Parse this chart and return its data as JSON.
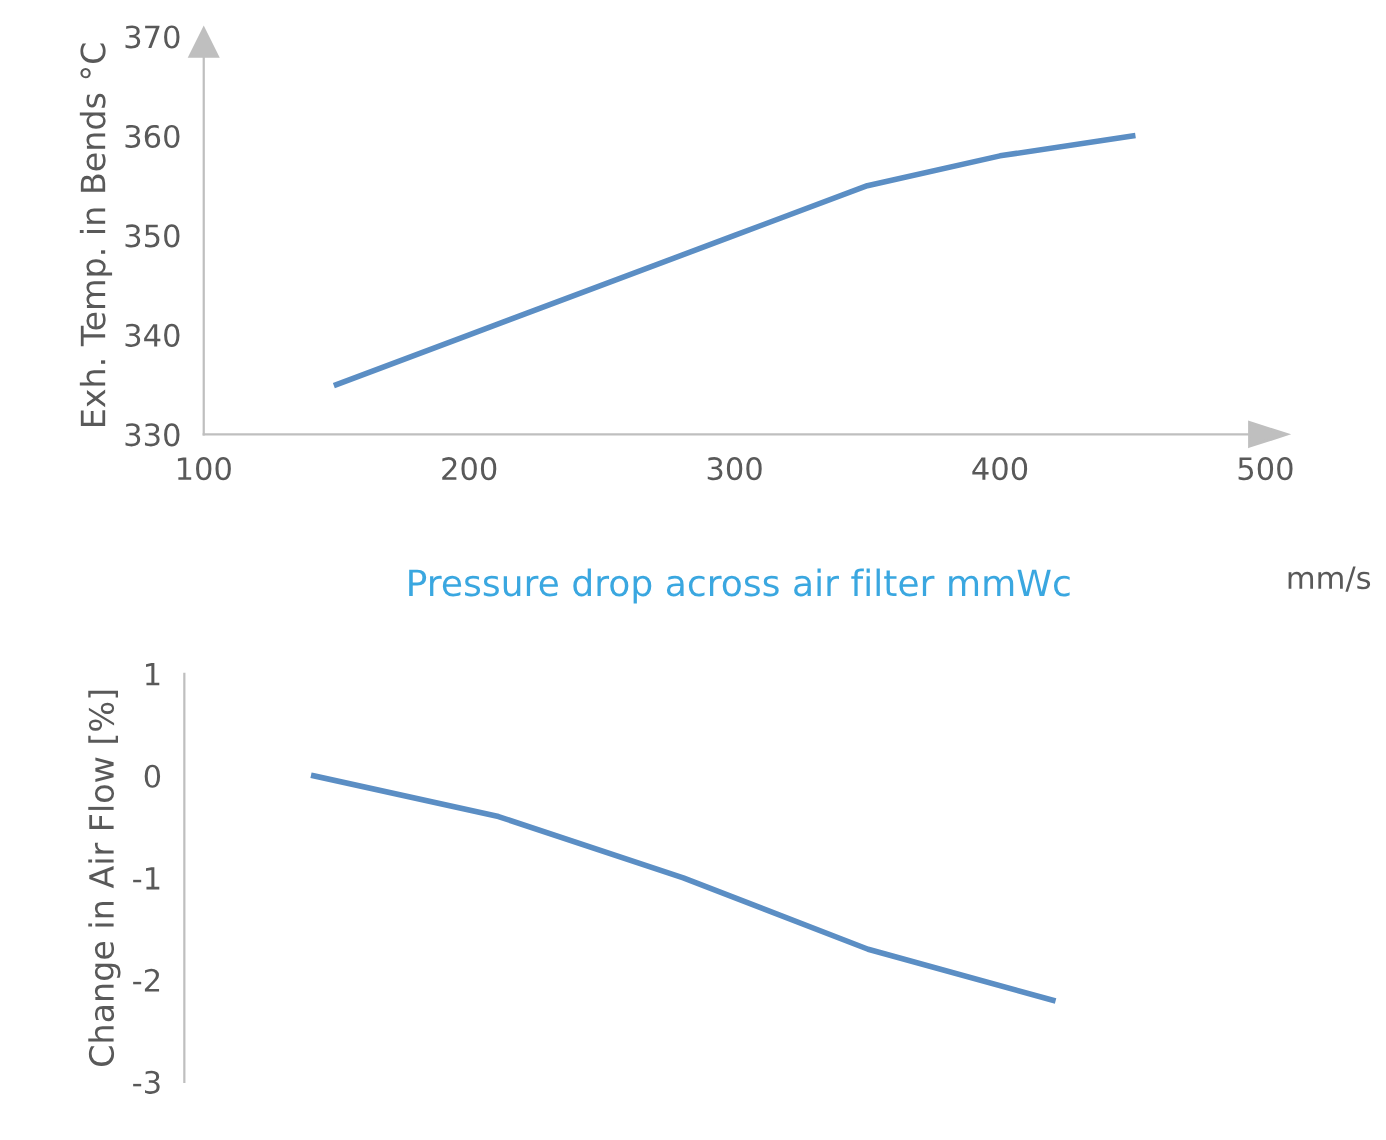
{
  "chart_data": [
    {
      "type": "line",
      "xlabel": "mm/s",
      "ylabel": "Exh. Temp. in Bends °C",
      "x": [
        150,
        200,
        250,
        300,
        350,
        400,
        450
      ],
      "series": [
        {
          "color": "#5b8ec4",
          "values": [
            335,
            340,
            345,
            350,
            355,
            358,
            360
          ]
        }
      ],
      "xlim": [
        100,
        500
      ],
      "xticks": [
        100,
        200,
        300,
        400,
        500
      ],
      "ylim": [
        330,
        370
      ],
      "yticks": [
        330,
        340,
        350,
        360,
        370
      ],
      "grid": false,
      "legend": false,
      "marker": "none",
      "line_style": "solid"
    },
    {
      "type": "line",
      "title": "Pressure drop across air filter mmWc",
      "ylabel": "Change in Air Flow [%]",
      "categories": [
        null,
        null,
        null,
        null,
        null
      ],
      "series": [
        {
          "color": "#5b8ec4",
          "values": [
            0,
            -0.4,
            -1.0,
            -1.7,
            -2.2
          ]
        }
      ],
      "ylim": [
        -3,
        1
      ],
      "yticks": [
        -3,
        -2,
        -1,
        0,
        1
      ],
      "tick_labels": "y",
      "grid": false,
      "legend": false,
      "marker": "none",
      "line_style": "solid"
    }
  ]
}
